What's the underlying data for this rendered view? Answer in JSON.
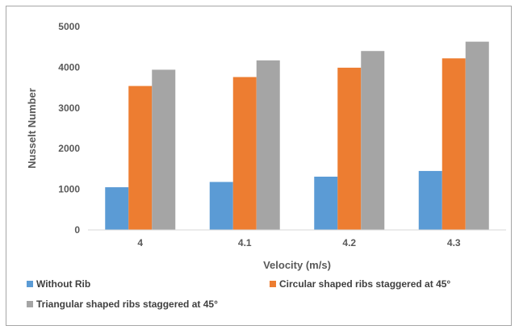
{
  "chart_data": {
    "type": "bar",
    "categories": [
      "4",
      "4.1",
      "4.2",
      "4.3"
    ],
    "series": [
      {
        "name": "Without Rib",
        "values": [
          1050,
          1180,
          1310,
          1450
        ],
        "color": "#5b9bd5"
      },
      {
        "name": "Circular shaped ribs staggered at 45°",
        "values": [
          3540,
          3760,
          3990,
          4220
        ],
        "color": "#ed7d31"
      },
      {
        "name": "Triangular shaped ribs staggered at 45°",
        "values": [
          3940,
          4170,
          4400,
          4630
        ],
        "color": "#a5a5a5"
      }
    ],
    "title": "",
    "xlabel": "Velocity (m/s)",
    "ylabel": "Nusselt Number",
    "ylim": [
      0,
      5000
    ],
    "yticks": [
      "0",
      "1000",
      "2000",
      "3000",
      "4000",
      "5000"
    ],
    "grid": false,
    "legend_position": "bottom"
  }
}
